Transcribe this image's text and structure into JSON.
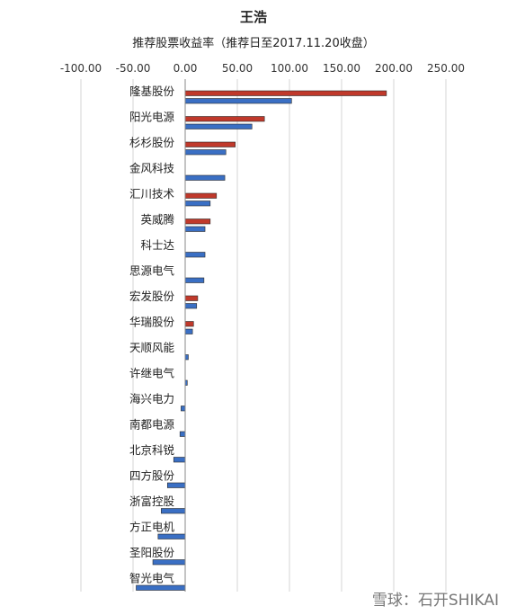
{
  "chart_data": {
    "type": "bar",
    "orientation": "horizontal",
    "title": "王浩",
    "subtitle": "推荐股票收益率（推荐日至2017.11.20收盘）",
    "xlim": [
      -100,
      250
    ],
    "xticks": [
      -100,
      -50,
      0,
      50,
      100,
      150,
      200,
      250
    ],
    "xtick_labels": [
      "-100.00",
      "-50.00",
      "0.00",
      "50.00",
      "100.00",
      "150.00",
      "200.00",
      "250.00"
    ],
    "grid": true,
    "categories": [
      "隆基股份",
      "阳光电源",
      "杉杉股份",
      "金风科技",
      "汇川技术",
      "英威腾",
      "科士达",
      "思源电气",
      "宏发股份",
      "华瑞股份",
      "天顺风能",
      "许继电气",
      "海兴电力",
      "南都电源",
      "北京科锐",
      "四方股份",
      "浙富控股",
      "方正电机",
      "圣阳股份",
      "智光电气"
    ],
    "series": [
      {
        "color": "#c0392b",
        "values": [
          193,
          76,
          48,
          null,
          30,
          24,
          null,
          null,
          12,
          8,
          null,
          null,
          null,
          null,
          null,
          null,
          null,
          null,
          null,
          null
        ]
      },
      {
        "color": "#3a6fc4",
        "values": [
          102,
          64,
          39,
          38,
          24,
          19,
          19,
          18,
          11,
          7,
          3,
          2,
          -4,
          -5,
          -11,
          -17,
          -23,
          -26,
          -31,
          -47
        ]
      }
    ]
  },
  "watermark": "雪球：石开SHIKAI"
}
